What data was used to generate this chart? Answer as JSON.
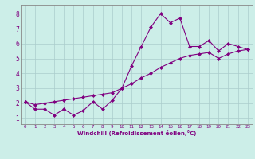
{
  "title": "",
  "xlabel": "Windchill (Refroidissement éolien,°C)",
  "ylabel": "",
  "bg_color": "#cceee8",
  "line_color": "#800080",
  "grid_color": "#aacccc",
  "xlim": [
    -0.5,
    23.5
  ],
  "ylim": [
    0.6,
    8.6
  ],
  "xticks": [
    0,
    1,
    2,
    3,
    4,
    5,
    6,
    7,
    8,
    9,
    10,
    11,
    12,
    13,
    14,
    15,
    16,
    17,
    18,
    19,
    20,
    21,
    22,
    23
  ],
  "yticks": [
    1,
    2,
    3,
    4,
    5,
    6,
    7,
    8
  ],
  "data_x": [
    0,
    1,
    2,
    3,
    4,
    5,
    6,
    7,
    8,
    9,
    10,
    11,
    12,
    13,
    14,
    15,
    16,
    17,
    18,
    19,
    20,
    21,
    22,
    23
  ],
  "data_y1": [
    2.1,
    1.6,
    1.6,
    1.2,
    1.6,
    1.2,
    1.5,
    2.1,
    1.6,
    2.2,
    3.0,
    4.5,
    5.8,
    7.1,
    8.0,
    7.4,
    7.7,
    5.8,
    5.8,
    6.2,
    5.5,
    6.0,
    5.8,
    5.6
  ],
  "data_y2": [
    2.1,
    1.9,
    2.0,
    2.1,
    2.2,
    2.3,
    2.4,
    2.5,
    2.6,
    2.7,
    3.0,
    3.3,
    3.7,
    4.0,
    4.4,
    4.7,
    5.0,
    5.2,
    5.3,
    5.4,
    5.0,
    5.3,
    5.5,
    5.6
  ],
  "marker": "D",
  "markersize": 2.0,
  "linewidth": 0.8,
  "tick_fontsize_x": 4.2,
  "tick_fontsize_y": 5.5,
  "xlabel_fontsize": 5.0
}
